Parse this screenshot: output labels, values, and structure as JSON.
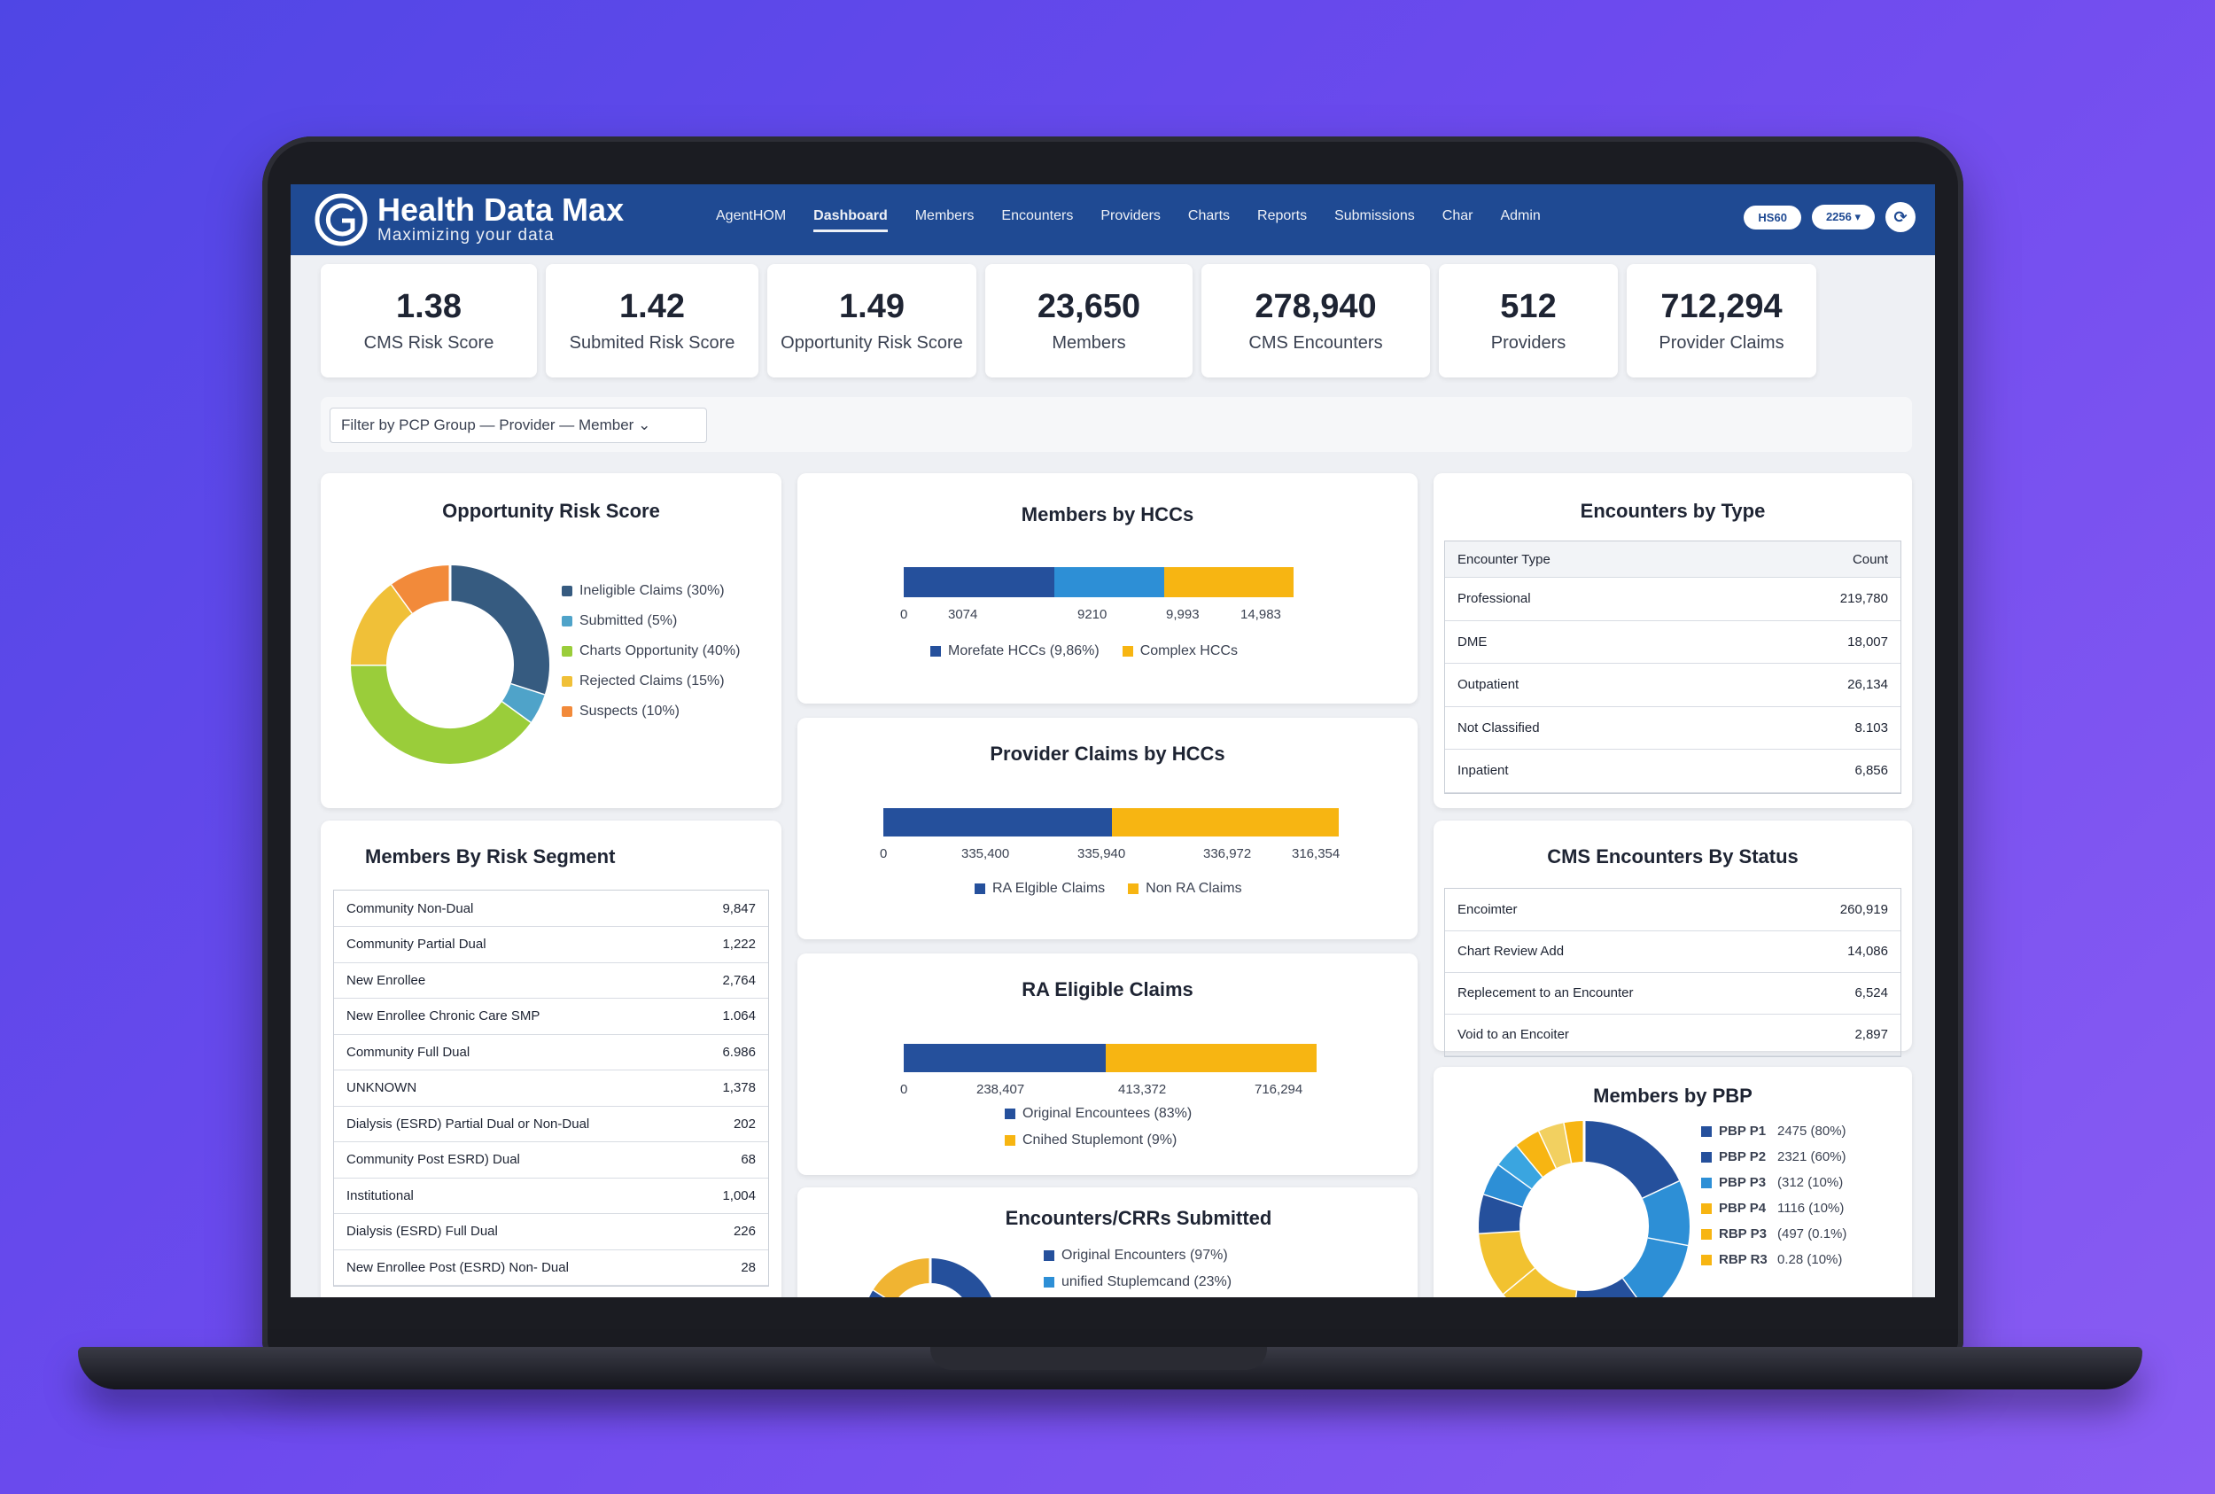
{
  "app": {
    "name": "Health Data Max",
    "tagline": "Maximizing your data"
  },
  "nav": [
    "AgentHOM",
    "Dashboard",
    "Members",
    "Encounters",
    "Providers",
    "Charts",
    "Reports",
    "Submissions",
    "Char",
    "Admin"
  ],
  "nav_active": "Dashboard",
  "header_controls": {
    "pill1": "HS60",
    "pill2": "2256",
    "icon": "settings-icon"
  },
  "kpis": [
    {
      "value": "1.38",
      "label": "CMS Risk Score"
    },
    {
      "value": "1.42",
      "label": "Submited Risk Score"
    },
    {
      "value": "1.49",
      "label": "Opportunity Risk Score"
    },
    {
      "value": "23,650",
      "label": "Members"
    },
    {
      "value": "278,940",
      "label": "CMS Encounters"
    },
    {
      "value": "512",
      "label": "Providers"
    },
    {
      "value": "712,294",
      "label": "Provider Claims"
    }
  ],
  "filter": {
    "label": "Filter by PCP Group — Provider — Member"
  },
  "opportunity": {
    "title": "Opportunity Risk Score",
    "legend": [
      {
        "label": "Ineligible Claims  (30%)",
        "color": "#365b80"
      },
      {
        "label": "Submitted  (5%)",
        "color": "#4fa3c9"
      },
      {
        "label": "Charts Opportunity  (40%)",
        "color": "#9acd3a"
      },
      {
        "label": "Rejected Claims  (15%)",
        "color": "#f0c038"
      },
      {
        "label": "Suspects  (10%)",
        "color": "#f28a3a"
      }
    ]
  },
  "members_by_hccs": {
    "title": "Members by HCCs",
    "ticks": [
      "0",
      "3074",
      "9210",
      "9,993",
      "14,983"
    ],
    "legend": [
      {
        "label": "Morefate HCCs (9,86%)",
        "color": "#25509c"
      },
      {
        "label": "Complex HCCs",
        "color": "#f7b512"
      }
    ]
  },
  "provider_claims_by_hccs": {
    "title": "Provider Claims by HCCs",
    "ticks": [
      "0",
      "335,400",
      "335,940",
      "336,972",
      "316,354"
    ],
    "legend": [
      {
        "label": "RA Elgible Claims",
        "color": "#25509c"
      },
      {
        "label": "Non RA Claims",
        "color": "#f7b512"
      }
    ]
  },
  "ra_eligible_claims": {
    "title": "RA Eligible Claims",
    "ticks": [
      "0",
      "238,407",
      "413,372",
      "716,294"
    ],
    "legend": [
      {
        "label": "Original Encountees (83%)",
        "color": "#25509c"
      },
      {
        "label": "Cnihed Stuplemont  (9%)",
        "color": "#f7b512"
      }
    ]
  },
  "encounters_crrs": {
    "title": "Encounters/CRRs Submitted",
    "legend": [
      {
        "label": "Original Encounters (97%)",
        "color": "#25509c"
      },
      {
        "label": "unified Stuplemcand (23%)",
        "color": "#2d8fd6"
      }
    ]
  },
  "encounters_by_type": {
    "title": "Encounters by Type",
    "header": [
      "Encounter Type",
      "Count"
    ],
    "rows": [
      [
        "Professional",
        "219,780"
      ],
      [
        "DME",
        "18,007"
      ],
      [
        "Outpatient",
        "26,134"
      ],
      [
        "Not Classified",
        "8.103"
      ],
      [
        "Inpatient",
        "6,856"
      ]
    ]
  },
  "cms_by_status": {
    "title": "CMS Encounters By Status",
    "rows": [
      [
        "Encoimter",
        "260,919"
      ],
      [
        "Chart Review Add",
        "14,086"
      ],
      [
        "Replecement to an Encounter",
        "6,524"
      ],
      [
        "Void to an Encoiter",
        "2,897"
      ]
    ]
  },
  "risk_segment": {
    "title": "Members By Risk Segment",
    "rows": [
      [
        "Community Non-Dual",
        "9,847"
      ],
      [
        "Community Partial Dual",
        "1,222"
      ],
      [
        "New Enrollee",
        "2,764"
      ],
      [
        "New Enrollee Chronic Care SMP",
        "1.064"
      ],
      [
        "Community Full Dual",
        "6.986"
      ],
      [
        "UNKNOWN",
        "1,378"
      ],
      [
        "Dialysis (ESRD) Partial Dual or Non-Dual",
        "202"
      ],
      [
        "Community Post ESRD) Dual",
        "68"
      ],
      [
        "Institutional",
        "1,004"
      ],
      [
        "Dialysis (ESRD) Full Dual",
        "226"
      ],
      [
        "New Enrollee Post (ESRD) Non- Dual",
        "28"
      ]
    ]
  },
  "members_by_pbp": {
    "title": "Members by PBP",
    "legend": [
      {
        "label": "PBP P1",
        "value": "2475 (80%)",
        "color": "#25509c"
      },
      {
        "label": "PBP P2",
        "value": "2321 (60%)",
        "color": "#25509c"
      },
      {
        "label": "PBP P3",
        "value": "(312 (10%)",
        "color": "#2d8fd6"
      },
      {
        "label": "PBP P4",
        "value": "1116 (10%)",
        "color": "#f7b512"
      },
      {
        "label": "RBP P3",
        "value": "(497 (0.1%)",
        "color": "#f7b512"
      },
      {
        "label": "RBP R3",
        "value": "0.28 (10%)",
        "color": "#f7b512"
      }
    ]
  }
}
